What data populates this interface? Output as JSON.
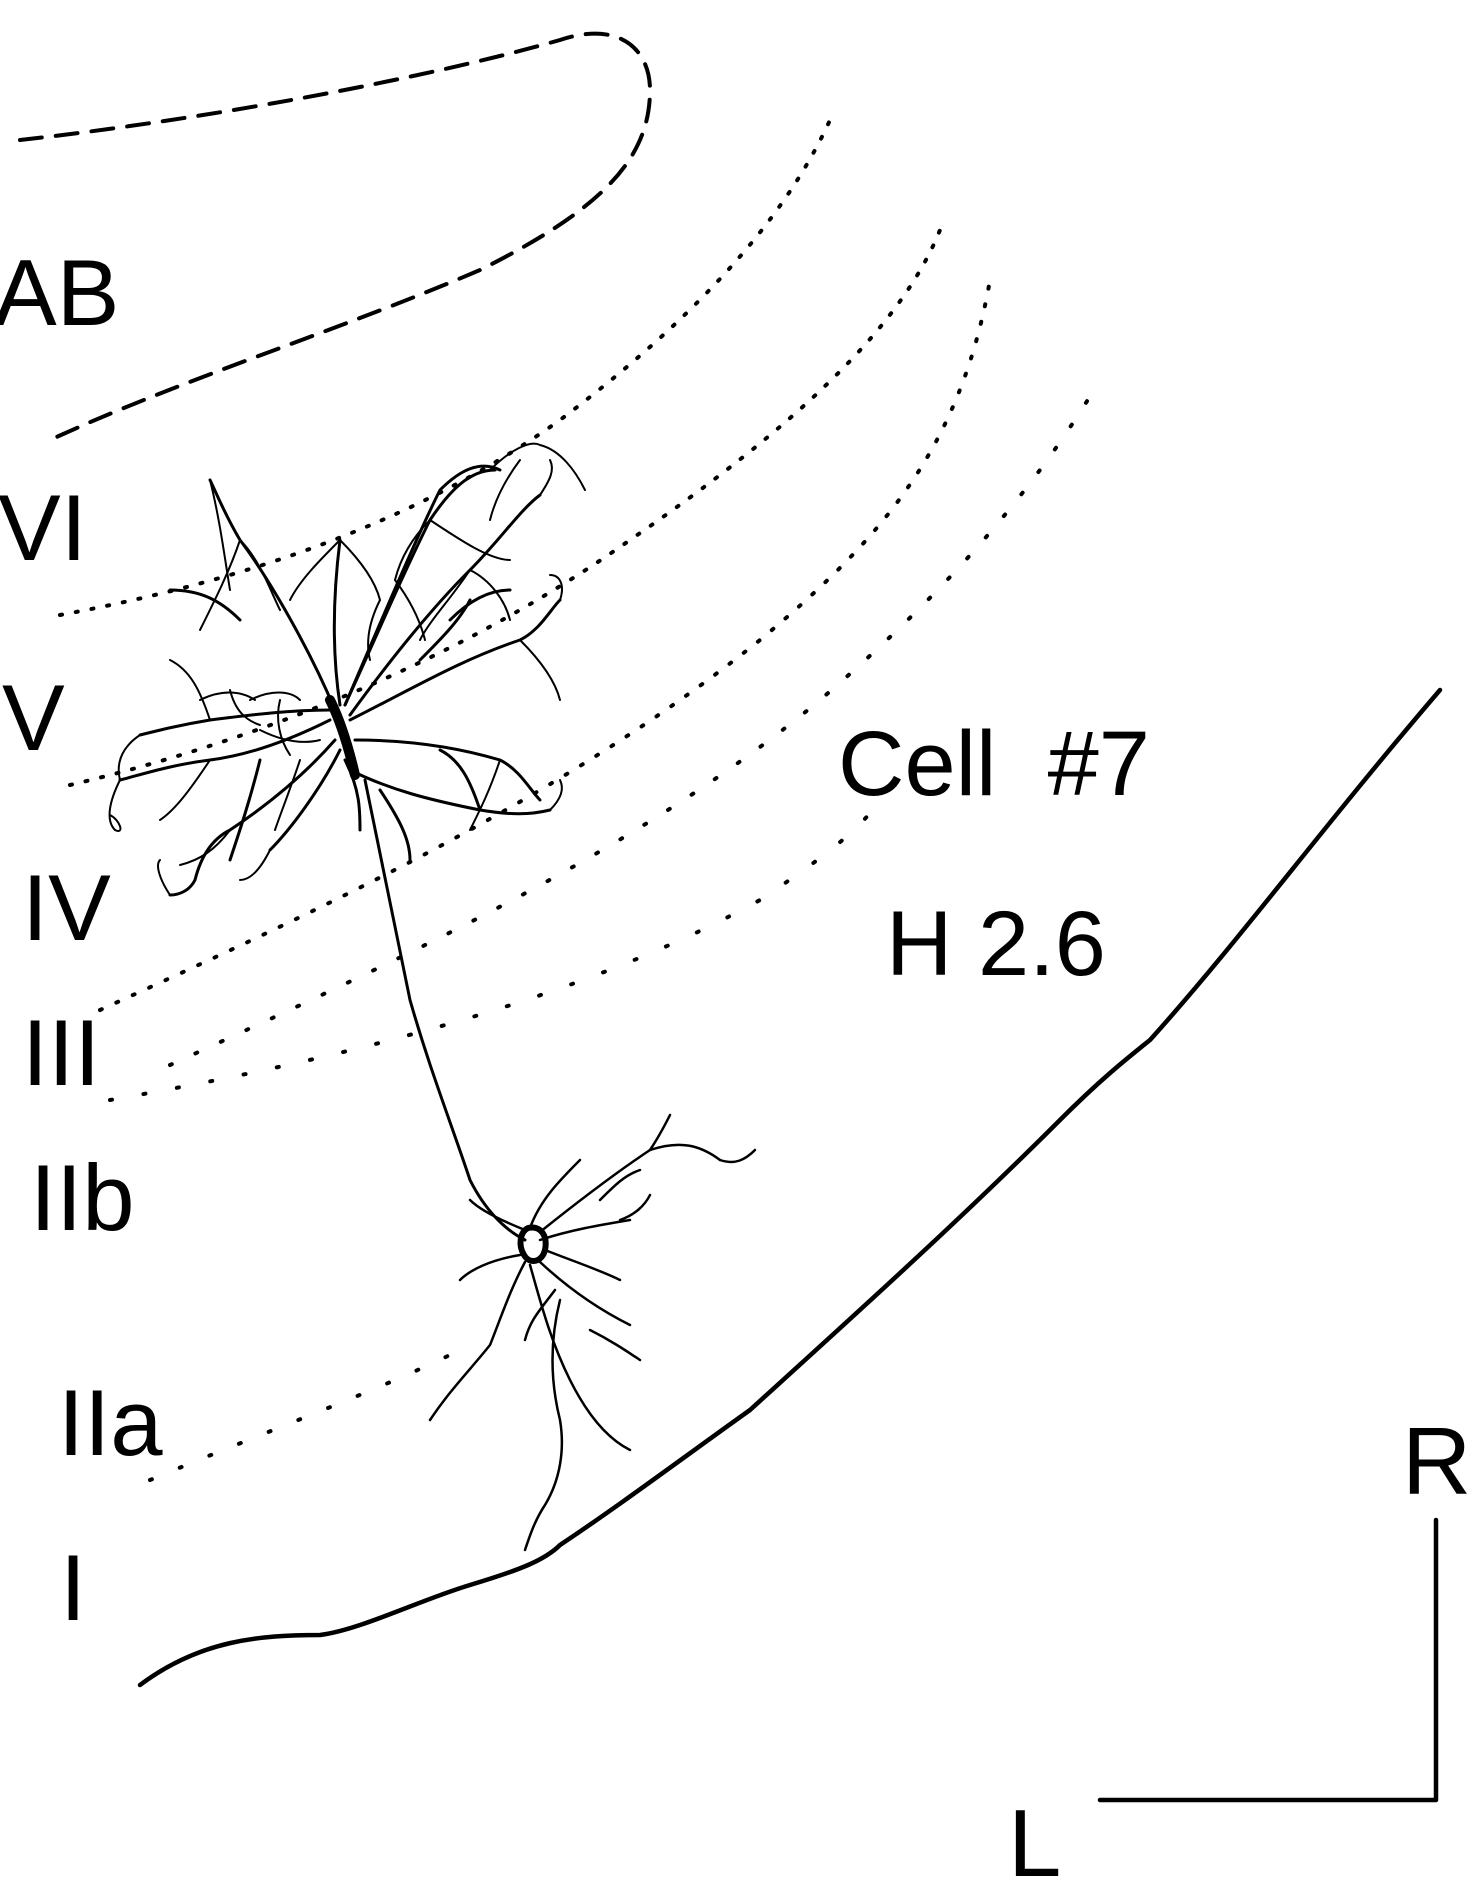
{
  "figure": {
    "region_label": "AB",
    "layers": [
      "VI",
      "V",
      "IV",
      "III",
      "IIb",
      "IIa",
      "I"
    ],
    "cell_label": "Cell  #7",
    "plane_label": "H 2.6",
    "orientation": {
      "up": "R",
      "left": "L"
    },
    "colors": {
      "ink": "#000000",
      "background": "#ffffff"
    }
  }
}
